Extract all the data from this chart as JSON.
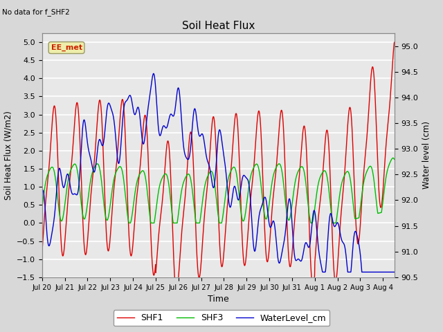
{
  "title": "Soil Heat Flux",
  "note": "No data for f_SHF2",
  "xlabel": "Time",
  "ylabel_left": "Soil Heat Flux (W/m2)",
  "ylabel_right": "Water level (cm)",
  "ylim_left": [
    -1.5,
    5.25
  ],
  "ylim_right": [
    90.5,
    95.25
  ],
  "bg_color": "#d8d8d8",
  "plot_bg_color": "#e8e8e8",
  "grid_color": "#ffffff",
  "legend_colors": [
    "#dd0000",
    "#00bb00",
    "#0000cc"
  ],
  "legend_items": [
    "SHF1",
    "SHF3",
    "WaterLevel_cm"
  ],
  "line_width": 1.0,
  "ee_met_label": "EE_met",
  "xtick_labels": [
    "Jul 20",
    "Jul 21",
    "Jul 22",
    "Jul 23",
    "Jul 24",
    "Jul 25",
    "Jul 26",
    "Jul 27",
    "Jul 28",
    "Jul 29",
    "Jul 30",
    "Jul 31",
    "Aug 1",
    "Aug 2",
    "Aug 3",
    "Aug 4"
  ],
  "n_days": 15.5
}
